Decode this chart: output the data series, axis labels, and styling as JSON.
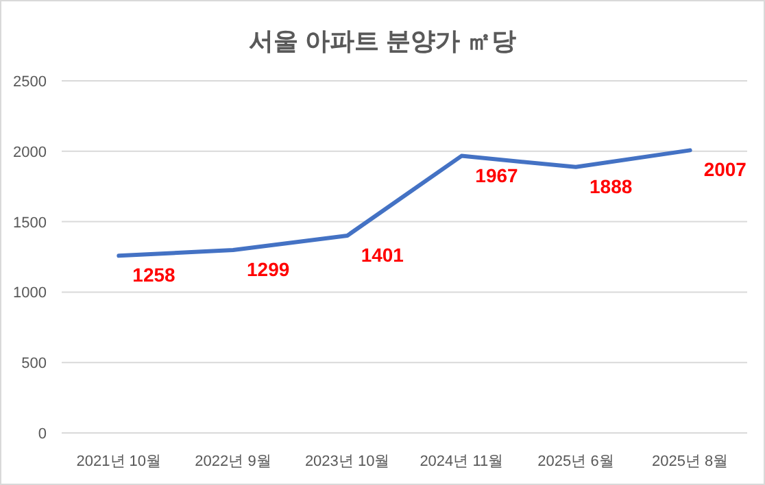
{
  "chart_data": {
    "type": "line",
    "title": "서울 아파트 분양가 ㎡당",
    "categories": [
      "2021년 10월",
      "2022년 9월",
      "2023년 10월",
      "2024년 11월",
      "2025년 6월",
      "2025년 8월"
    ],
    "series": [
      {
        "color": "#4472c4",
        "values": [
          1258,
          1299,
          1401,
          1967,
          1888,
          2007
        ]
      }
    ],
    "ylim": [
      0,
      2500
    ],
    "yticks": [
      0,
      500,
      1000,
      1500,
      2000,
      2500
    ],
    "grid": "y",
    "data_labels": true,
    "marker": "none",
    "line_style": "solid"
  }
}
